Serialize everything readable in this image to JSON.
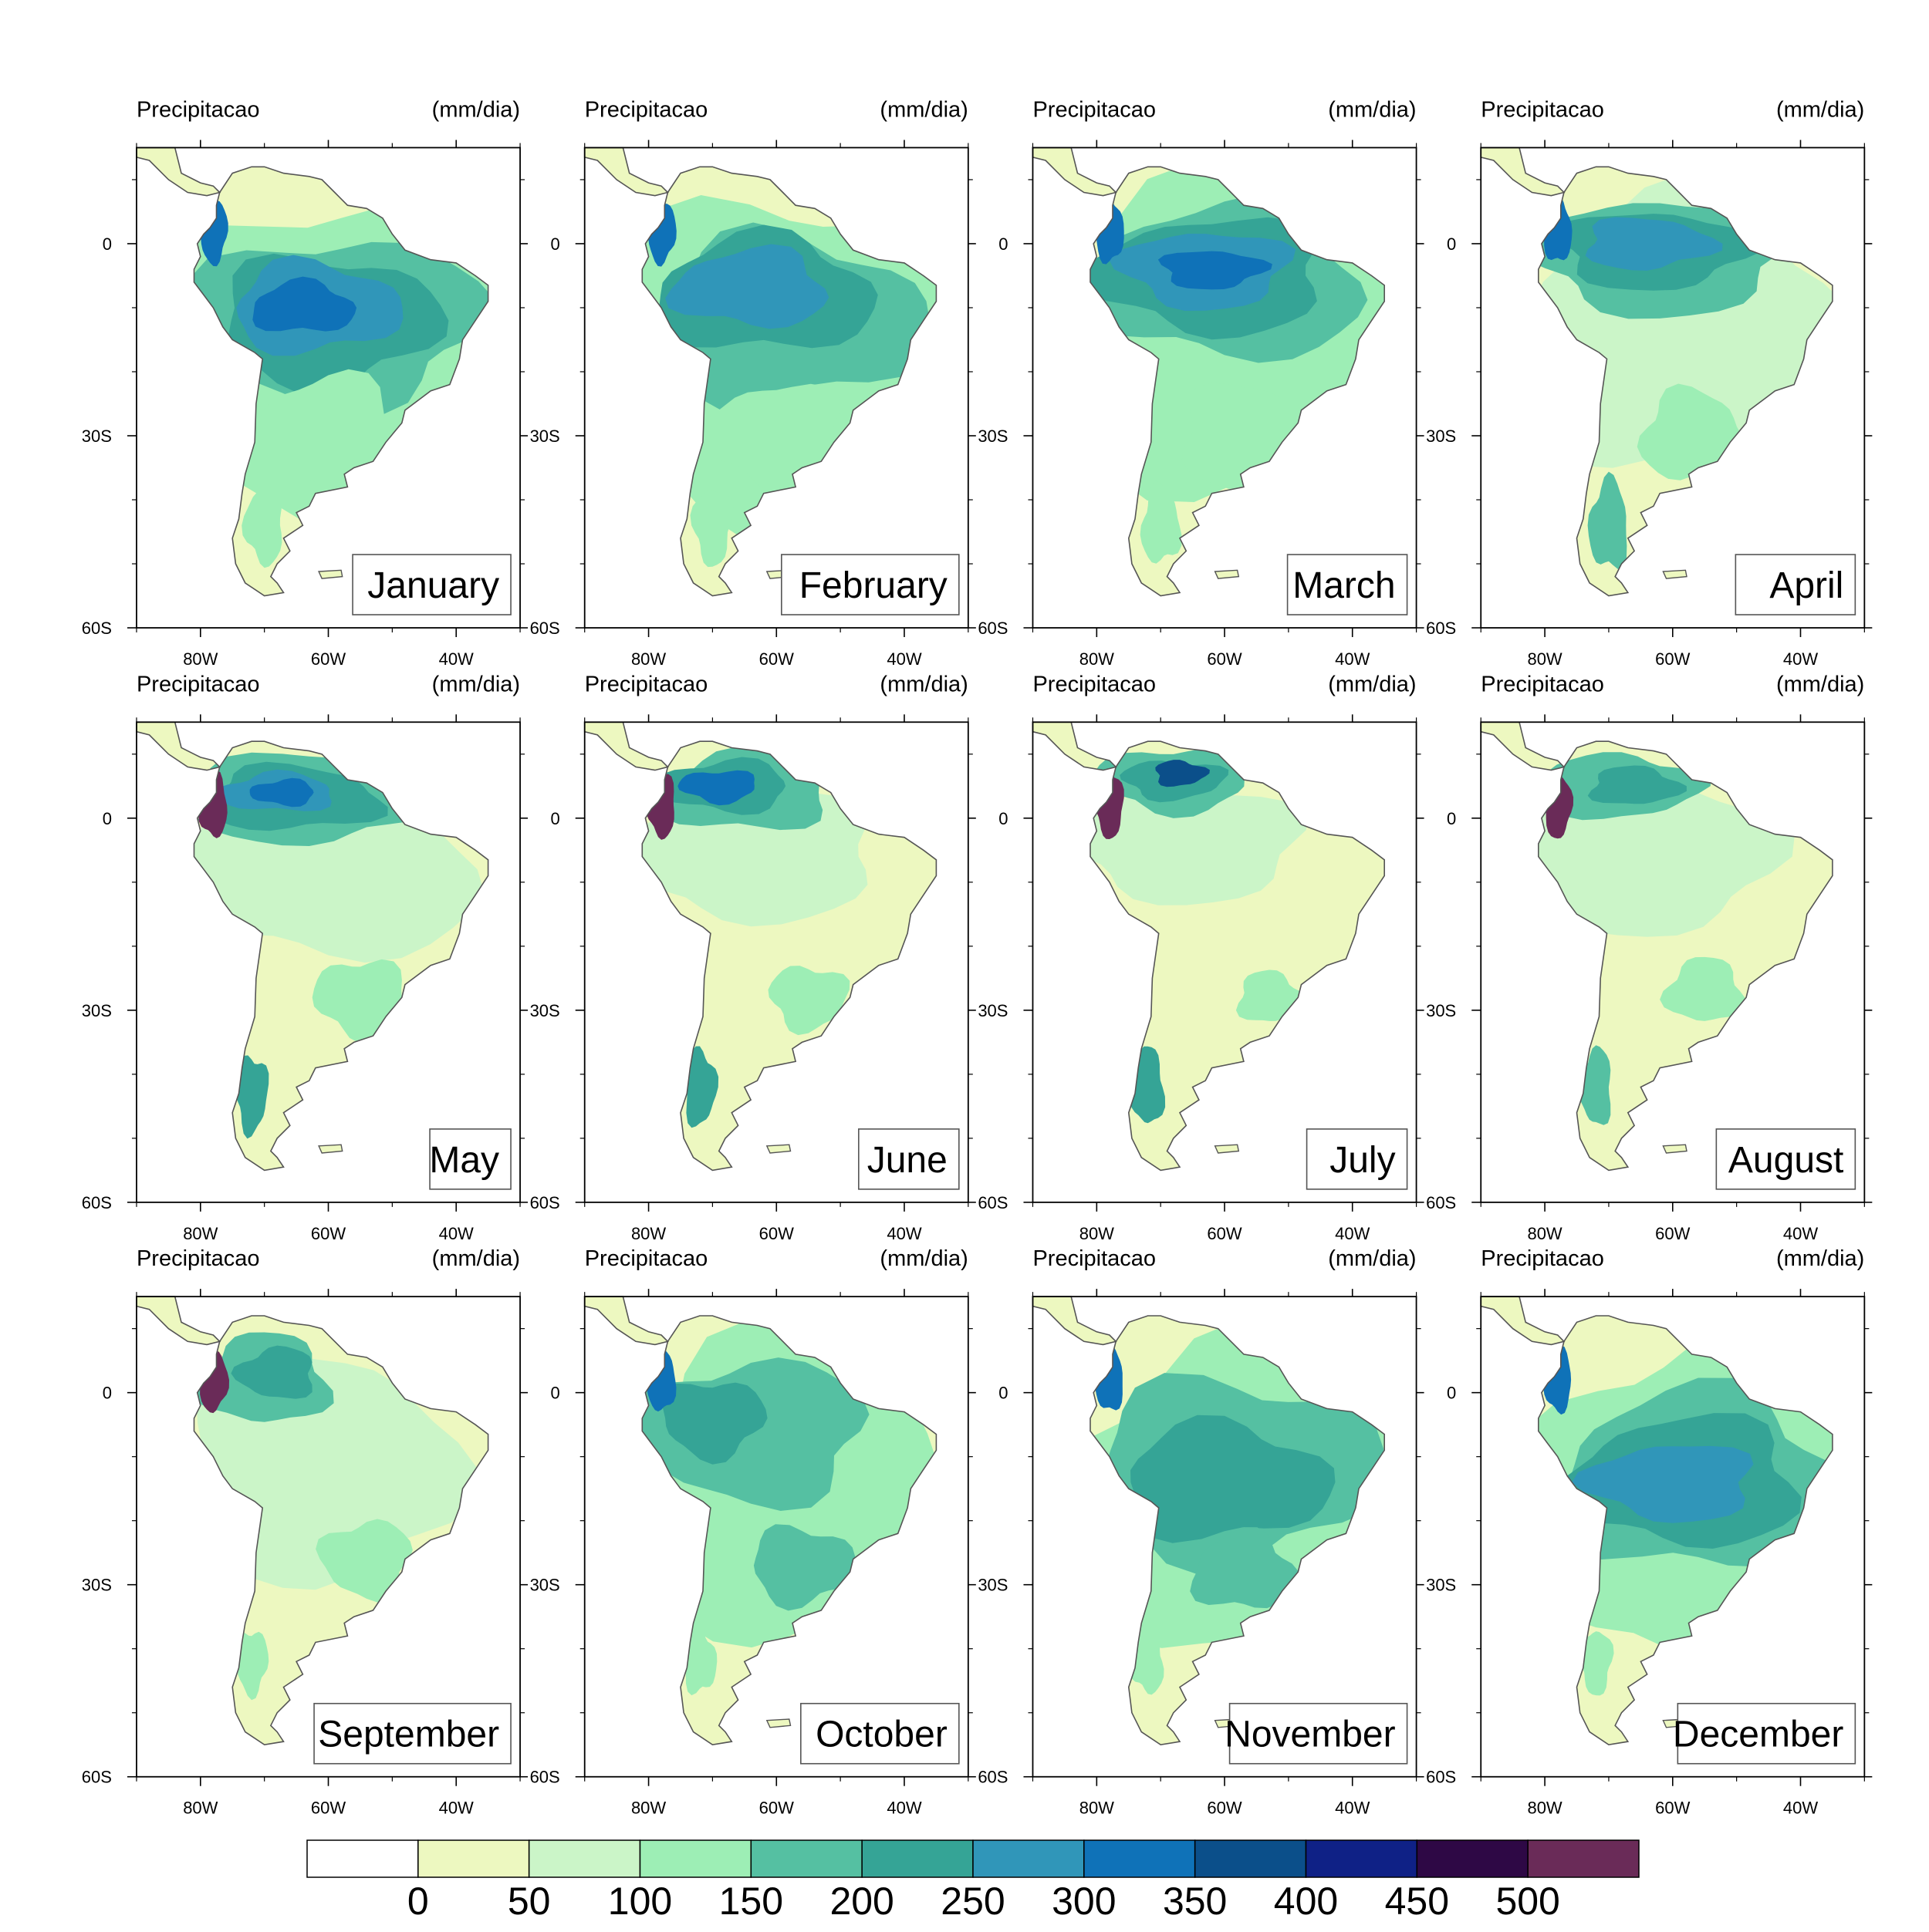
{
  "panel_left_title": "Precipitacao",
  "panel_right_title": "(mm/dia)",
  "lat_labels": [
    "0",
    "30S",
    "60S"
  ],
  "lon_labels": [
    "80W",
    "60W",
    "40W"
  ],
  "months": [
    "January",
    "February",
    "March",
    "April",
    "May",
    "June",
    "July",
    "August",
    "September",
    "October",
    "November",
    "December"
  ],
  "colorbar": {
    "labels": [
      "0",
      "50",
      "100",
      "150",
      "200",
      "250",
      "300",
      "350",
      "400",
      "450",
      "500"
    ],
    "colors": [
      "#ffffff",
      "#edf8c0",
      "#cbf5c8",
      "#9deeb5",
      "#55c0a2",
      "#35a496",
      "#3096b9",
      "#0f72b8",
      "#0b4f8a",
      "#0f2186",
      "#2e0845",
      "#6a2b58"
    ]
  },
  "chart_data": {
    "type": "heatmap",
    "title": "",
    "panels": [
      "January",
      "February",
      "March",
      "April",
      "May",
      "June",
      "July",
      "August",
      "September",
      "October",
      "November",
      "December"
    ],
    "variable": "Precipitacao",
    "units": "(mm/dia)",
    "lon_ticks": [
      "80W",
      "60W",
      "40W"
    ],
    "lat_ticks": [
      "0",
      "30S",
      "60S"
    ],
    "lon_range": [
      -90,
      -30
    ],
    "lat_range": [
      -60,
      15
    ],
    "levels": [
      0,
      50,
      100,
      150,
      200,
      250,
      300,
      350,
      400,
      450,
      500
    ]
  }
}
